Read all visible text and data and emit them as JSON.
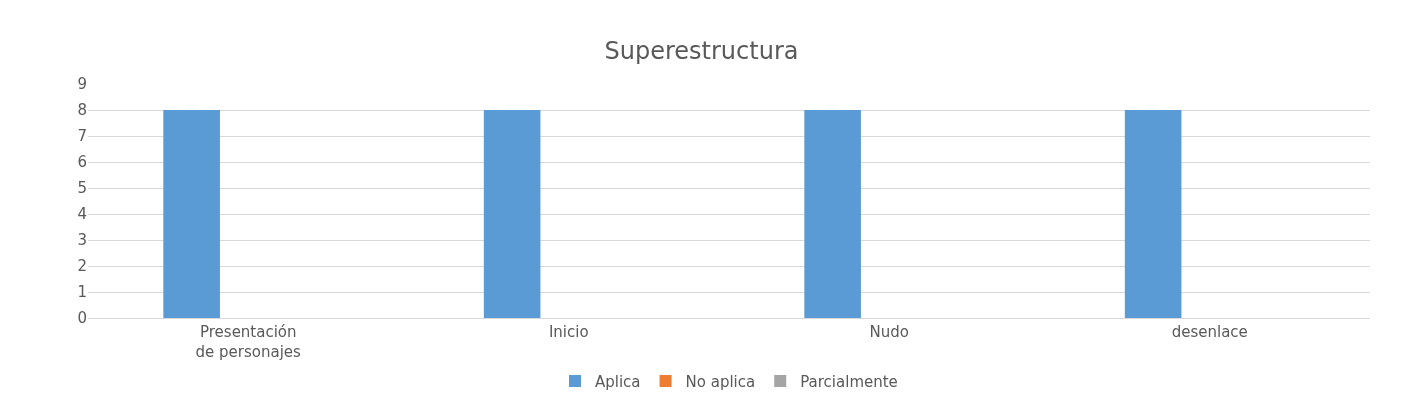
{
  "chart_data": {
    "type": "bar",
    "title": "Superestructura",
    "categories": [
      "Presentación de personajes",
      "Inicio",
      "Nudo",
      "desenlace"
    ],
    "series": [
      {
        "name": "Aplica",
        "color": "#5b9bd5",
        "values": [
          8,
          8,
          8,
          8
        ]
      },
      {
        "name": "No aplica",
        "color": "#ed7d31",
        "values": [
          0,
          0,
          0,
          0
        ]
      },
      {
        "name": "Parcialmente",
        "color": "#a5a5a5",
        "values": [
          0,
          0,
          0,
          0
        ]
      }
    ],
    "ylim": [
      0,
      9
    ],
    "yticks": [
      0,
      1,
      2,
      3,
      4,
      5,
      6,
      7,
      8,
      9
    ],
    "grid": "y",
    "legend": "bottom"
  }
}
